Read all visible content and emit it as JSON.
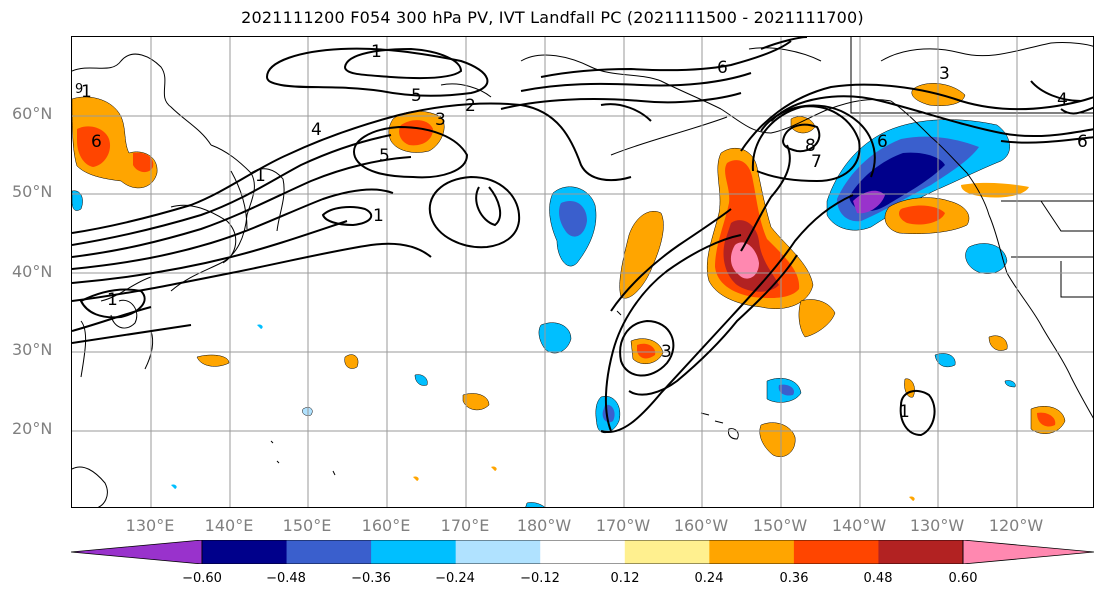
{
  "title": "2021111200 F054 300 hPa PV, IVT Landfall PC (2021111500 - 2021111700)",
  "lat_labels": [
    "60°N",
    "50°N",
    "40°N",
    "30°N",
    "20°N"
  ],
  "lon_labels": [
    "130°E",
    "140°E",
    "150°E",
    "160°E",
    "170°E",
    "180°W",
    "170°W",
    "160°W",
    "150°W",
    "140°W",
    "130°W",
    "120°W"
  ],
  "colorbar": {
    "ticks": [
      "−0.60",
      "−0.48",
      "−0.36",
      "−0.24",
      "−0.12",
      "0.12",
      "0.24",
      "0.36",
      "0.48",
      "0.60"
    ],
    "colors": [
      "#9932cc",
      "#00008b",
      "#3a5fcd",
      "#00bfff",
      "#b0e2ff",
      "#ffffff",
      "#fff08f",
      "#ffa500",
      "#ff4500",
      "#b22222",
      "#ff88b0"
    ]
  },
  "contour_labels": [
    "1",
    "1",
    "1",
    "1",
    "1",
    "1",
    "2",
    "3",
    "3",
    "3",
    "4",
    "4",
    "5",
    "5",
    "6",
    "6",
    "6",
    "6",
    "7",
    "8",
    "9"
  ]
}
